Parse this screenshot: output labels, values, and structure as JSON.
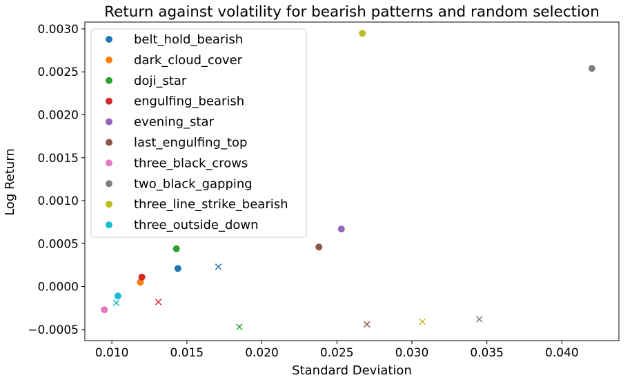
{
  "chart_data": {
    "type": "scatter",
    "title": "Return against volatility for bearish patterns and random selection",
    "xlabel": "Standard Deviation",
    "ylabel": "Log Return",
    "xlim": [
      0.0082,
      0.0438
    ],
    "ylim": [
      -0.00063,
      0.00308
    ],
    "x_ticks": [
      0.01,
      0.015,
      0.02,
      0.025,
      0.03,
      0.035,
      0.04
    ],
    "x_tick_labels": [
      "0.010",
      "0.015",
      "0.020",
      "0.025",
      "0.030",
      "0.035",
      "0.040"
    ],
    "y_ticks": [
      -0.0005,
      0.0,
      0.0005,
      0.001,
      0.0015,
      0.002,
      0.0025,
      0.003
    ],
    "y_tick_labels": [
      "−0.0005",
      "0.0000",
      "0.0005",
      "0.0010",
      "0.0015",
      "0.0020",
      "0.0025",
      "0.0030"
    ],
    "grid": false,
    "legend_position": "upper-left",
    "series": [
      {
        "name": "belt_hold_bearish",
        "color": "#1f77b4",
        "pattern": {
          "x": 0.0144,
          "y": 0.00021
        },
        "random": {
          "x": 0.0171,
          "y": 0.00023
        }
      },
      {
        "name": "dark_cloud_cover",
        "color": "#ff7f0e",
        "pattern": {
          "x": 0.0119,
          "y": 5e-05
        },
        "random": null
      },
      {
        "name": "doji_star",
        "color": "#2ca02c",
        "pattern": {
          "x": 0.0143,
          "y": 0.00044
        },
        "random": {
          "x": 0.0185,
          "y": -0.00047
        }
      },
      {
        "name": "engulfing_bearish",
        "color": "#d62728",
        "pattern": {
          "x": 0.012,
          "y": 0.00011
        },
        "random": {
          "x": 0.0131,
          "y": -0.00018
        }
      },
      {
        "name": "evening_star",
        "color": "#9467bd",
        "pattern": {
          "x": 0.0253,
          "y": 0.00067
        },
        "random": null
      },
      {
        "name": "last_engulfing_top",
        "color": "#8c564b",
        "pattern": {
          "x": 0.0238,
          "y": 0.00046
        },
        "random": {
          "x": 0.027,
          "y": -0.00044
        }
      },
      {
        "name": "three_black_crows",
        "color": "#e377c2",
        "pattern": {
          "x": 0.0095,
          "y": -0.00027
        },
        "random": null
      },
      {
        "name": "two_black_gapping",
        "color": "#7f7f7f",
        "pattern": {
          "x": 0.042,
          "y": 0.00254
        },
        "random": {
          "x": 0.0345,
          "y": -0.00038
        }
      },
      {
        "name": "three_line_strike_bearish",
        "color": "#bcbd22",
        "pattern": {
          "x": 0.0267,
          "y": 0.00295
        },
        "random": {
          "x": 0.0307,
          "y": -0.00041
        }
      },
      {
        "name": "three_outside_down",
        "color": "#17becf",
        "pattern": {
          "x": 0.0104,
          "y": -0.00011
        },
        "random": {
          "x": 0.0103,
          "y": -0.00019
        }
      }
    ]
  }
}
